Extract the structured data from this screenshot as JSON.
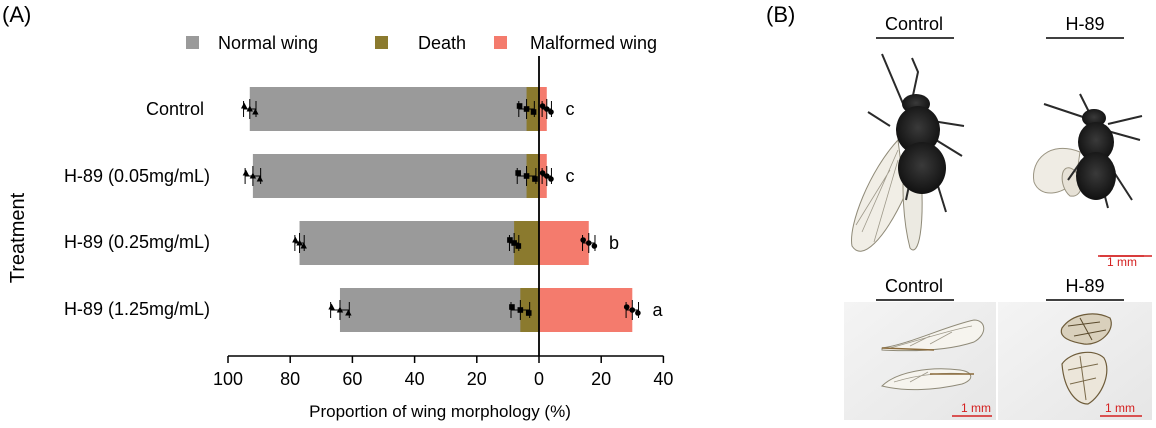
{
  "panel_a_label": "(A)",
  "panel_b_label": "(B)",
  "colors": {
    "normal_wing": "#9a9a9a",
    "death": "#8b7a2e",
    "malformed_wing": "#f47b6d",
    "scale_bar": "#d42020"
  },
  "chart_data": {
    "type": "bar",
    "orientation": "horizontal-diverging",
    "xlabel": "Proportion of wing morphology (%)",
    "ylabel": "Treatment",
    "xlim_left": [
      0,
      100
    ],
    "xlim_right": [
      0,
      40
    ],
    "x_ticks": [
      "100",
      "80",
      "60",
      "40",
      "20",
      "0",
      "20",
      "40"
    ],
    "x_tick_values": [
      -100,
      -80,
      -60,
      -40,
      -20,
      0,
      20,
      40
    ],
    "categories": [
      "Control",
      "H-89 (0.05mg/mL)",
      "H-89 (0.25mg/mL)",
      "H-89 (1.25mg/mL)"
    ],
    "legend_position": "top",
    "series": [
      {
        "name": "Normal wing",
        "side": "left",
        "values": [
          93,
          92,
          77,
          64
        ],
        "errors": [
          2,
          2.5,
          1.5,
          3
        ]
      },
      {
        "name": "Death",
        "side": "left",
        "values": [
          4,
          4,
          8,
          6
        ],
        "errors": [
          2.5,
          3,
          1.5,
          3
        ]
      },
      {
        "name": "Malformed wing",
        "side": "right",
        "values": [
          2.5,
          2.5,
          16,
          30
        ],
        "errors": [
          1.5,
          1.5,
          2,
          2
        ]
      }
    ],
    "significance": [
      "c",
      "c",
      "b",
      "a"
    ]
  },
  "photos": {
    "top_left_label": "Control",
    "top_right_label": "H-89",
    "bottom_left_label": "Control",
    "bottom_right_label": "H-89",
    "scale_text": "1 mm"
  }
}
